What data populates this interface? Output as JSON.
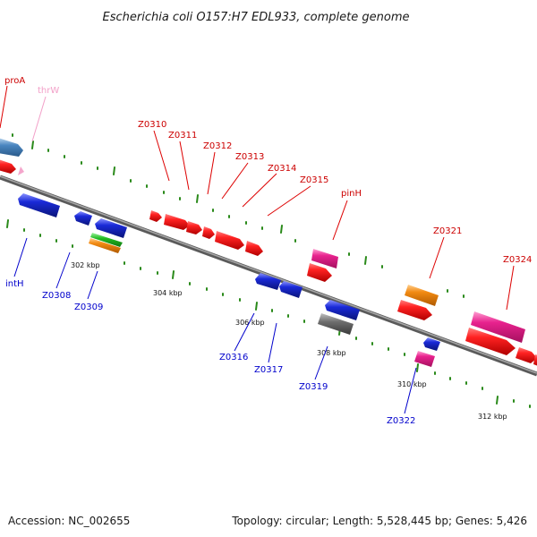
{
  "title": "Escherichia coli O157:H7 EDL933, complete genome",
  "footer": {
    "accession": "Accession: NC_002655",
    "summary": "Topology: circular; Length: 5,528,445 bp; Genes: 5,426"
  },
  "scale_labels": [
    "302 kbp",
    "304 kbp",
    "306 kbp",
    "308 kbp",
    "310 kbp",
    "312 kbp"
  ],
  "gene_labels": {
    "top": [
      "proA",
      "thrW",
      "Z0310",
      "Z0311",
      "Z0312",
      "Z0313",
      "Z0314",
      "Z0315",
      "pinH",
      "Z0321",
      "Z0324"
    ],
    "bottom": [
      "intH",
      "Z0308",
      "Z0309",
      "Z0316",
      "Z0317",
      "Z0319",
      "Z0322"
    ]
  },
  "colors": {
    "forward_label": "#cc0000",
    "trna_label": "#f2a0c8",
    "reverse_label": "#0000cc",
    "cds_red": "#ee1111",
    "cds_blue": "#1a2ad8",
    "cds_pink": "#e8228e",
    "cds_orange": "#f28a12",
    "cds_green": "#22bb22",
    "cds_gray": "#6e6e6e",
    "cds_steel": "#4a86c0",
    "backbone": "#777777",
    "tick": "#2a8a1a"
  }
}
